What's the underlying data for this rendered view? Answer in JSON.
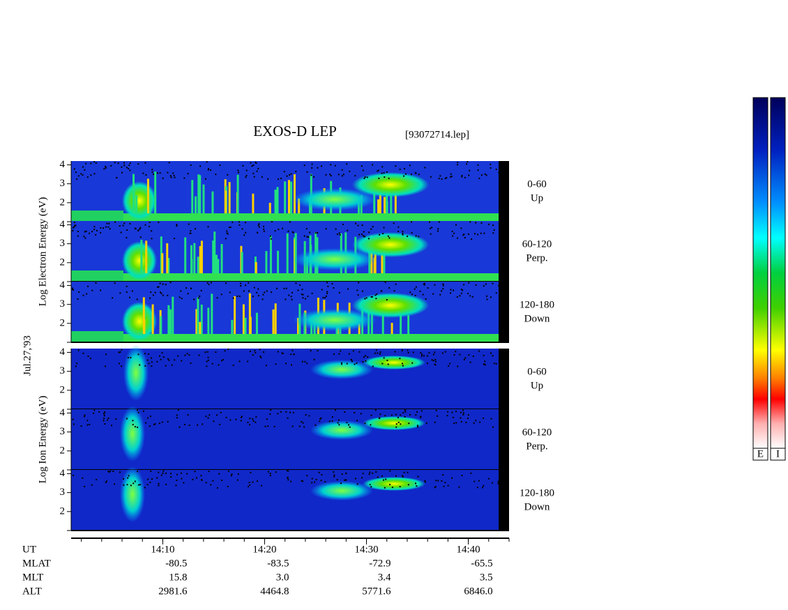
{
  "title": "EXOS-D LEP",
  "file": "[93072714.lep]",
  "date": "Jul.27,'93",
  "groups": [
    {
      "ylabel": "Log Electron Energy (eV)",
      "panels": [
        {
          "angle": "0-60",
          "direction": "Up"
        },
        {
          "angle": "60-120",
          "direction": "Perp."
        },
        {
          "angle": "120-180",
          "direction": "Down"
        }
      ]
    },
    {
      "ylabel": "Log Ion Energy (eV)",
      "panels": [
        {
          "angle": "0-60",
          "direction": "Up"
        },
        {
          "angle": "60-120",
          "direction": "Perp."
        },
        {
          "angle": "120-180",
          "direction": "Down"
        }
      ]
    }
  ],
  "ylim": [
    1,
    4.2
  ],
  "yticks": [
    2,
    3,
    4
  ],
  "xlim": [
    841,
    884
  ],
  "xticks": [
    {
      "value": 850,
      "label": "14:10"
    },
    {
      "value": 860,
      "label": "14:20"
    },
    {
      "value": 870,
      "label": "14:30"
    },
    {
      "value": 880,
      "label": "14:40"
    }
  ],
  "orbit": [
    {
      "name": "MLAT",
      "values": [
        "-80.5",
        "-83.5",
        "-72.9",
        "-65.5"
      ]
    },
    {
      "name": "MLT",
      "values": [
        "15.8",
        "3.0",
        "3.4",
        "3.5"
      ]
    },
    {
      "name": "ALT",
      "values": [
        "2981.6",
        "4464.8",
        "5771.6",
        "6846.0"
      ]
    }
  ],
  "xname": "UT",
  "colorbars": [
    "E",
    "I"
  ]
}
